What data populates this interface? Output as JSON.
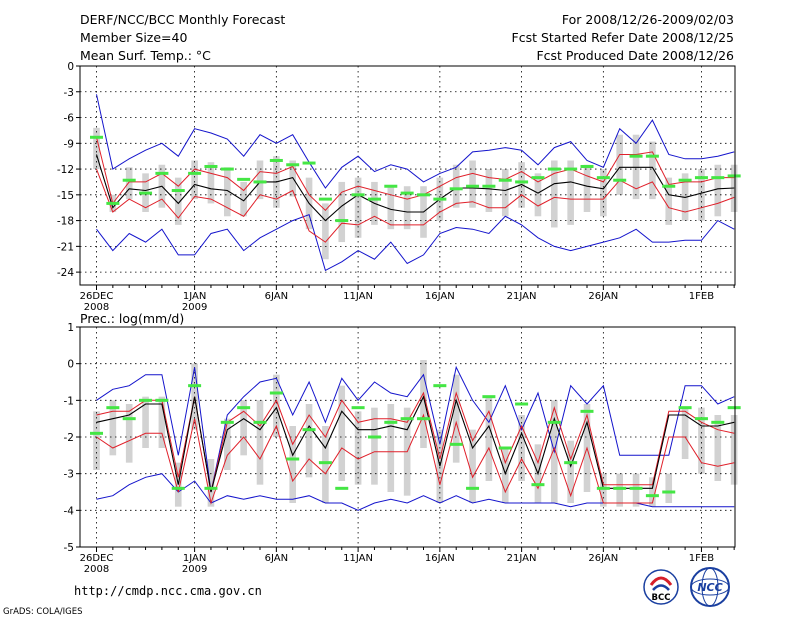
{
  "header": {
    "title": "DERF/NCC/BCC Monthly Forecast",
    "member": "Member Size=40",
    "period": "For 2008/12/26-2009/02/03",
    "started": "Fcst Started Refer Date 2008/12/25",
    "produced": "Fcst Produced Date 2008/12/26"
  },
  "footer": {
    "url": "http://cmdp.ncc.cma.gov.cn",
    "credit": "GrADS: COLA/IGES",
    "logo_bcc": "BCC",
    "logo_ncc": "NCC"
  },
  "colors": {
    "ensemble_mean": "#000000",
    "plus_minus_std": "#e0202a",
    "max_min": "#1414cc",
    "observed": "#44e644",
    "spread_box": "#d2d2d2",
    "grid": "#000000"
  },
  "chart_data": [
    {
      "id": "temperature",
      "type": "line",
      "title": "Mean Surf. Temp.: °C",
      "ylim": [
        -25.5,
        0
      ],
      "yticks": [
        0,
        -3,
        -6,
        -9,
        -12,
        -15,
        -18,
        -21,
        -24
      ],
      "ytick_labels": [
        "0",
        "-3",
        "-6",
        "-9",
        "-12",
        "-15",
        "-18",
        "-21",
        "-24"
      ],
      "xticks": [
        {
          "day": 0,
          "label": "26DEC",
          "sub": "2008"
        },
        {
          "day": 6,
          "label": "1JAN",
          "sub": "2009"
        },
        {
          "day": 11,
          "label": "6JAN",
          "sub": ""
        },
        {
          "day": 16,
          "label": "11JAN",
          "sub": ""
        },
        {
          "day": 21,
          "label": "16JAN",
          "sub": ""
        },
        {
          "day": 26,
          "label": "21JAN",
          "sub": ""
        },
        {
          "day": 31,
          "label": "26JAN",
          "sub": ""
        },
        {
          "day": 37,
          "label": "1FEB",
          "sub": ""
        }
      ],
      "days": [
        0,
        1,
        2,
        3,
        4,
        5,
        6,
        7,
        8,
        9,
        10,
        11,
        12,
        13,
        14,
        15,
        16,
        17,
        18,
        19,
        20,
        21,
        22,
        23,
        24,
        25,
        26,
        27,
        28,
        29,
        30,
        31,
        32,
        33,
        34,
        35,
        36,
        37,
        38,
        39
      ],
      "series": [
        {
          "name": "max",
          "values": [
            -3.3,
            -12.0,
            -10.8,
            -9.8,
            -9.0,
            -10.5,
            -7.3,
            -7.8,
            -8.5,
            -10.5,
            -8.0,
            -9.0,
            -8.0,
            -11.2,
            -14.2,
            -11.8,
            -10.5,
            -12.3,
            -11.5,
            -12.0,
            -13.5,
            -12.5,
            -11.8,
            -10.0,
            -9.8,
            -9.5,
            -9.8,
            -11.5,
            -9.5,
            -8.8,
            -11.0,
            -11.8,
            -7.3,
            -9.0,
            -6.3,
            -10.3,
            -10.8,
            -10.8,
            -10.5,
            -10.0
          ]
        },
        {
          "name": "plus_std",
          "values": [
            -8.3,
            -16.0,
            -13.5,
            -13.5,
            -12.5,
            -14.0,
            -12.0,
            -12.5,
            -13.0,
            -14.5,
            -12.3,
            -12.5,
            -11.7,
            -15.0,
            -16.8,
            -14.7,
            -14.0,
            -14.5,
            -15.0,
            -15.5,
            -15.0,
            -14.0,
            -13.0,
            -12.5,
            -13.0,
            -13.2,
            -12.3,
            -13.5,
            -12.5,
            -12.0,
            -12.8,
            -13.5,
            -10.3,
            -10.3,
            -10.0,
            -13.8,
            -13.5,
            -13.5,
            -13.0,
            -13.0
          ]
        },
        {
          "name": "mean",
          "values": [
            -10.3,
            -16.5,
            -14.3,
            -14.5,
            -14.0,
            -16.0,
            -13.8,
            -14.3,
            -14.5,
            -15.7,
            -13.5,
            -13.5,
            -13.0,
            -16.0,
            -18.0,
            -16.3,
            -15.0,
            -16.0,
            -16.7,
            -17.0,
            -17.0,
            -15.5,
            -14.2,
            -14.2,
            -14.3,
            -14.5,
            -13.8,
            -14.8,
            -13.7,
            -13.5,
            -14.0,
            -14.3,
            -11.8,
            -11.8,
            -11.8,
            -15.0,
            -15.3,
            -14.8,
            -14.3,
            -14.2
          ]
        },
        {
          "name": "minus_std",
          "values": [
            -12.0,
            -17.0,
            -15.5,
            -16.5,
            -15.5,
            -17.7,
            -15.2,
            -15.5,
            -16.5,
            -17.5,
            -15.0,
            -15.5,
            -14.5,
            -19.2,
            -20.5,
            -18.3,
            -18.5,
            -17.5,
            -18.5,
            -18.5,
            -18.5,
            -17.0,
            -16.0,
            -15.8,
            -16.5,
            -16.5,
            -15.0,
            -16.3,
            -15.3,
            -15.5,
            -15.5,
            -15.5,
            -13.3,
            -14.3,
            -13.5,
            -16.5,
            -17.0,
            -16.5,
            -16.0,
            -15.3
          ]
        },
        {
          "name": "min",
          "values": [
            -19.0,
            -21.5,
            -19.5,
            -20.5,
            -19.0,
            -22.0,
            -22.0,
            -19.5,
            -19.0,
            -21.5,
            -20.0,
            -19.0,
            -18.0,
            -17.3,
            -23.8,
            -22.8,
            -21.5,
            -22.5,
            -20.5,
            -23.0,
            -22.0,
            -19.5,
            -18.8,
            -19.0,
            -19.5,
            -17.5,
            -18.5,
            -20.0,
            -21.0,
            -21.5,
            -21.0,
            -20.5,
            -20.0,
            -19.0,
            -20.5,
            -20.5,
            -20.3,
            -20.3,
            -18.0,
            -19.0
          ]
        },
        {
          "name": "observed",
          "values": [
            -8.3,
            -16.0,
            -13.3,
            -14.8,
            -12.5,
            -14.5,
            -12.5,
            -11.7,
            -12.0,
            -13.2,
            -13.5,
            -11.0,
            -11.5,
            -11.3,
            -15.5,
            -18.0,
            -15.0,
            -15.5,
            -14.0,
            -14.8,
            -15.0,
            -15.5,
            -14.3,
            -14.0,
            -14.0,
            -13.3,
            -13.5,
            -13.0,
            -12.0,
            -12.0,
            -11.7,
            -13.0,
            -13.3,
            -10.5,
            -10.5,
            -14.0,
            -13.3,
            -13.0,
            -13.0,
            -12.8
          ]
        },
        {
          "name": "spread_high",
          "values": [
            -7.2,
            -15.0,
            -11.8,
            -12.5,
            -11.5,
            -13.0,
            -11.0,
            -11.2,
            -11.8,
            -13.5,
            -11.0,
            -10.5,
            -11.0,
            -13.0,
            -16.0,
            -13.5,
            -13.0,
            -13.5,
            -14.0,
            -14.0,
            -14.0,
            -13.0,
            -11.5,
            -11.0,
            -12.0,
            -12.0,
            -11.2,
            -12.5,
            -11.0,
            -11.0,
            -11.5,
            -12.0,
            -8.0,
            -8.0,
            -8.8,
            -13.0,
            -12.5,
            -12.0,
            -11.5,
            -11.5
          ]
        },
        {
          "name": "spread_low",
          "values": [
            -12.0,
            -17.0,
            -15.5,
            -17.0,
            -16.5,
            -18.5,
            -15.5,
            -16.0,
            -17.5,
            -17.5,
            -15.5,
            -16.5,
            -15.2,
            -19.0,
            -22.5,
            -20.5,
            -20.0,
            -18.5,
            -19.0,
            -19.0,
            -20.0,
            -18.0,
            -16.5,
            -16.5,
            -17.0,
            -17.5,
            -16.5,
            -17.5,
            -18.8,
            -18.5,
            -17.0,
            -17.5,
            -15.0,
            -15.5,
            -15.5,
            -18.5,
            -18.0,
            -18.0,
            -17.5,
            -17.0
          ]
        }
      ]
    },
    {
      "id": "precipitation",
      "type": "line",
      "title": "Prec.: log(mm/d)",
      "ylim": [
        -5,
        1
      ],
      "yticks": [
        1,
        0,
        -1,
        -2,
        -3,
        -4,
        -5
      ],
      "ytick_labels": [
        "1",
        "0",
        "-1",
        "-2",
        "-3",
        "-4",
        "-5"
      ],
      "xticks": [
        {
          "day": 0,
          "label": "26DEC",
          "sub": "2008"
        },
        {
          "day": 6,
          "label": "1JAN",
          "sub": "2009"
        },
        {
          "day": 11,
          "label": "6JAN",
          "sub": ""
        },
        {
          "day": 16,
          "label": "11JAN",
          "sub": ""
        },
        {
          "day": 21,
          "label": "16JAN",
          "sub": ""
        },
        {
          "day": 26,
          "label": "21JAN",
          "sub": ""
        },
        {
          "day": 31,
          "label": "26JAN",
          "sub": ""
        },
        {
          "day": 37,
          "label": "1FEB",
          "sub": ""
        }
      ],
      "days": [
        0,
        1,
        2,
        3,
        4,
        5,
        6,
        7,
        8,
        9,
        10,
        11,
        12,
        13,
        14,
        15,
        16,
        17,
        18,
        19,
        20,
        21,
        22,
        23,
        24,
        25,
        26,
        27,
        28,
        29,
        30,
        31,
        32,
        33,
        34,
        35,
        36,
        37,
        38,
        39
      ],
      "series": [
        {
          "name": "max",
          "values": [
            -1.0,
            -0.7,
            -0.6,
            -0.3,
            -0.3,
            -2.5,
            -0.1,
            -3.5,
            -1.4,
            -0.9,
            -0.5,
            -0.4,
            -1.4,
            -0.5,
            -1.6,
            -0.4,
            -1.0,
            -0.5,
            -0.8,
            -0.9,
            -0.3,
            -2.2,
            -0.1,
            -1.0,
            -1.6,
            -0.6,
            -1.8,
            -0.8,
            -2.4,
            -0.6,
            -1.1,
            -0.6,
            -2.5,
            -2.5,
            -2.5,
            -2.5,
            -0.6,
            -0.6,
            -1.1,
            -0.9
          ]
        },
        {
          "name": "plus_std",
          "values": [
            -1.4,
            -1.3,
            -1.3,
            -1.0,
            -1.0,
            -3.1,
            -0.9,
            -3.5,
            -1.6,
            -1.3,
            -1.7,
            -1.0,
            -2.2,
            -1.4,
            -2.0,
            -1.0,
            -1.6,
            -1.5,
            -1.5,
            -1.6,
            -0.8,
            -2.6,
            -0.8,
            -2.1,
            -1.3,
            -2.7,
            -1.7,
            -2.7,
            -1.2,
            -2.6,
            -1.4,
            -3.3,
            -3.3,
            -3.3,
            -3.3,
            -1.3,
            -1.3,
            -1.6,
            -1.8,
            -1.9
          ]
        },
        {
          "name": "mean",
          "values": [
            -1.6,
            -1.5,
            -1.4,
            -1.1,
            -1.1,
            -3.3,
            -0.9,
            -3.5,
            -1.8,
            -1.5,
            -1.8,
            -1.2,
            -2.5,
            -1.7,
            -2.3,
            -1.3,
            -1.8,
            -1.8,
            -1.7,
            -1.8,
            -0.9,
            -2.8,
            -1.0,
            -2.3,
            -1.7,
            -3.0,
            -1.9,
            -3.0,
            -1.5,
            -2.8,
            -1.6,
            -3.4,
            -3.4,
            -3.4,
            -3.4,
            -1.4,
            -1.4,
            -1.7,
            -1.7,
            -1.6
          ]
        },
        {
          "name": "minus_std",
          "values": [
            -2.0,
            -2.3,
            -2.1,
            -1.9,
            -1.9,
            -3.5,
            -1.5,
            -3.8,
            -2.5,
            -2.0,
            -2.6,
            -1.7,
            -3.2,
            -2.6,
            -3.0,
            -2.3,
            -2.6,
            -2.4,
            -2.4,
            -2.4,
            -1.4,
            -3.3,
            -1.6,
            -3.1,
            -2.3,
            -3.5,
            -2.6,
            -3.4,
            -2.3,
            -3.6,
            -2.3,
            -3.8,
            -3.8,
            -3.8,
            -3.8,
            -2.0,
            -2.0,
            -2.7,
            -2.8,
            -2.7
          ]
        },
        {
          "name": "min",
          "values": [
            -3.7,
            -3.6,
            -3.3,
            -3.1,
            -3.0,
            -3.5,
            -3.2,
            -3.8,
            -3.6,
            -3.7,
            -3.6,
            -3.7,
            -3.7,
            -3.6,
            -3.8,
            -3.8,
            -4.0,
            -3.8,
            -3.7,
            -3.8,
            -3.6,
            -3.8,
            -3.6,
            -3.8,
            -3.7,
            -3.8,
            -3.8,
            -3.8,
            -3.8,
            -3.9,
            -3.8,
            -3.8,
            -3.8,
            -3.8,
            -3.9,
            -3.9,
            -3.9,
            -3.9,
            -3.9,
            -3.9
          ]
        },
        {
          "name": "observed",
          "values": [
            -1.9,
            -1.2,
            -1.5,
            -1.0,
            -1.0,
            -3.4,
            -0.6,
            -3.4,
            -1.6,
            -1.2,
            -1.6,
            -0.8,
            -2.6,
            -1.8,
            -2.7,
            -3.4,
            -1.2,
            -2.0,
            -1.6,
            -1.5,
            -1.5,
            -0.6,
            -2.2,
            -3.4,
            -0.9,
            -2.3,
            -1.1,
            -3.3,
            -1.6,
            -2.7,
            -1.3,
            -3.4,
            -3.4,
            -3.4,
            -3.6,
            -3.5,
            -1.2,
            -1.5,
            -1.6,
            -1.2
          ]
        },
        {
          "name": "spread_high",
          "values": [
            -1.3,
            -1.0,
            -1.1,
            -0.9,
            -0.9,
            -2.7,
            0.0,
            -2.6,
            -1.5,
            -1.0,
            -1.0,
            -0.3,
            -1.7,
            -1.1,
            -1.7,
            -0.6,
            -1.3,
            -1.2,
            -1.1,
            -1.2,
            0.1,
            -1.8,
            -0.3,
            -1.8,
            -0.9,
            -2.3,
            -1.4,
            -2.2,
            -1.0,
            -2.1,
            -1.1,
            -3.0,
            -3.0,
            -3.0,
            -3.1,
            -3.0,
            -1.2,
            -1.2,
            -1.4,
            -1.4
          ]
        },
        {
          "name": "spread_low",
          "values": [
            -2.9,
            -2.5,
            -2.7,
            -2.3,
            -2.3,
            -3.9,
            -1.8,
            -3.9,
            -2.9,
            -2.5,
            -3.3,
            -2.0,
            -3.8,
            -3.1,
            -3.8,
            -3.2,
            -3.3,
            -3.3,
            -3.5,
            -3.6,
            -2.3,
            -3.8,
            -2.7,
            -3.8,
            -3.2,
            -3.8,
            -3.2,
            -3.8,
            -3.8,
            -3.8,
            -3.5,
            -3.9,
            -3.9,
            -3.9,
            -3.9,
            -3.8,
            -2.6,
            -3.0,
            -3.2,
            -3.3
          ]
        }
      ]
    }
  ]
}
